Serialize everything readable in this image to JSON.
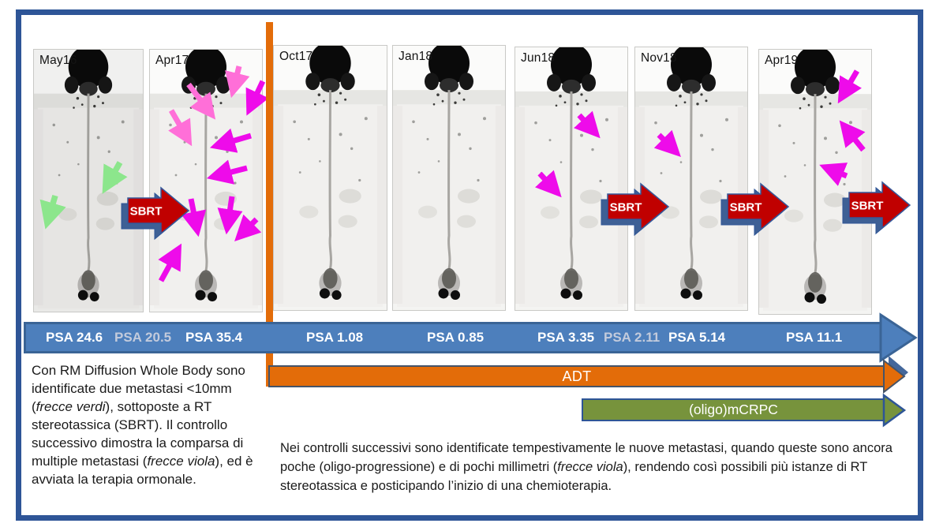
{
  "scans": [
    {
      "date": "May16"
    },
    {
      "date": "Apr17"
    },
    {
      "date": "Oct17"
    },
    {
      "date": "Jan18"
    },
    {
      "date": "Jun18"
    },
    {
      "date": "Nov18"
    },
    {
      "date": "Apr19"
    }
  ],
  "psa_timeline": {
    "values": [
      {
        "label": "PSA 24.6",
        "style": "normal"
      },
      {
        "label": "PSA 20.5",
        "style": "muted"
      },
      {
        "label": "PSA 35.4",
        "style": "normal"
      },
      {
        "label": "PSA 1.08",
        "style": "normal"
      },
      {
        "label": "PSA 0.85",
        "style": "normal"
      },
      {
        "label": "PSA 3.35",
        "style": "normal"
      },
      {
        "label": "PSA 2.11",
        "style": "muted"
      },
      {
        "label": "PSA 5.14",
        "style": "normal"
      },
      {
        "label": "PSA 11.1",
        "style": "normal"
      }
    ]
  },
  "therapy_bars": {
    "adt_label": "ADT",
    "mcrpc_label": "(oligo)mCRPC"
  },
  "sbrt_label": "SBRT",
  "captions": {
    "left_segments": [
      {
        "text": "Con RM Diffusion Whole Body sono identificate due metastasi <10mm (",
        "italic": false
      },
      {
        "text": "frecce verdi",
        "italic": true
      },
      {
        "text": "), sottoposte a RT stereotassica (SBRT). Il controllo successivo dimostra la comparsa di multiple metastasi (",
        "italic": false
      },
      {
        "text": "frecce viola",
        "italic": true
      },
      {
        "text": "), ed è avviata la terapia ormonale.",
        "italic": false
      }
    ],
    "bottom_segments": [
      {
        "text": "Nei controlli successivi sono identificate tempestivamente le nuove metastasi, quando queste sono ancora poche (oligo-progressione) e di pochi millimetri (",
        "italic": false
      },
      {
        "text": "frecce viola",
        "italic": true
      },
      {
        "text": "), rendendo così possibili più istanze di RT stereotassica e posticipando l’inizio di una chemioterapia.",
        "italic": false
      }
    ]
  },
  "colors": {
    "frame_border": "#2e5597",
    "psa_bar": "#4d7fbc",
    "psa_muted_text": "#c3cbdc",
    "adt_bar": "#e36c09",
    "mcrpc_bar": "#77933c",
    "sbrt_arrow": "#c00000",
    "sbrt_shadow": "#3e6095",
    "metastasis_green": "#8ce68c",
    "metastasis_magenta": "#ee0bea",
    "metastasis_pink": "#ff6fd8",
    "timeline_line": "#e36c09"
  }
}
